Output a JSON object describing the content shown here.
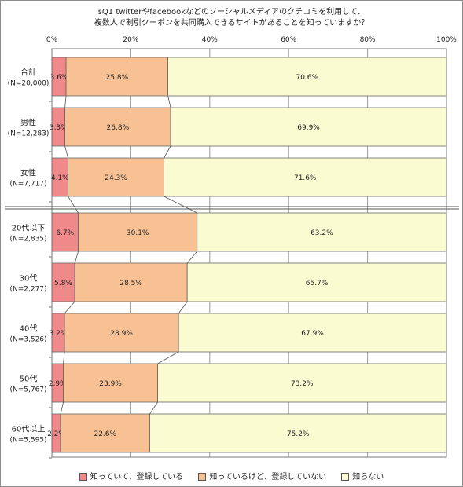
{
  "chart_data": {
    "type": "bar",
    "orientation": "horizontal",
    "stacked": true,
    "title_line1": "sQ1 twitterやfacebookなどのソーシャルメディアのクチコミを利用して、",
    "title_line2": "複数人で割引クーポンを共同購入できるサイトがあることを知っていますか？",
    "xlim": [
      0,
      100
    ],
    "x_ticks": [
      "0%",
      "20%",
      "40%",
      "60%",
      "80%",
      "100%"
    ],
    "categories": [
      {
        "name": "合計",
        "n": "(N=20,000)"
      },
      {
        "name": "男性",
        "n": "(N=12,283)"
      },
      {
        "name": "女性",
        "n": "(N=7,717)"
      },
      {
        "name": "20代以下",
        "n": "(N=2,835)"
      },
      {
        "name": "30代",
        "n": "(N=2,277)"
      },
      {
        "name": "40代",
        "n": "(N=3,526)"
      },
      {
        "name": "50代",
        "n": "(N=5,767)"
      },
      {
        "name": "60代以上",
        "n": "(N=5,595)"
      }
    ],
    "series": [
      {
        "name": "知っていて、登録している",
        "color": "#f08a8a",
        "values": [
          3.6,
          3.3,
          4.1,
          6.7,
          5.8,
          3.2,
          2.9,
          2.2
        ]
      },
      {
        "name": "知っているけど、登録していない",
        "color": "#f7c193",
        "values": [
          25.8,
          26.8,
          24.3,
          30.1,
          28.5,
          28.9,
          23.9,
          22.6
        ]
      },
      {
        "name": "知らない",
        "color": "#fbfbd2",
        "values": [
          70.6,
          69.9,
          71.6,
          63.2,
          65.7,
          67.9,
          73.2,
          75.2
        ]
      }
    ],
    "grid": true,
    "legend_position": "bottom"
  }
}
